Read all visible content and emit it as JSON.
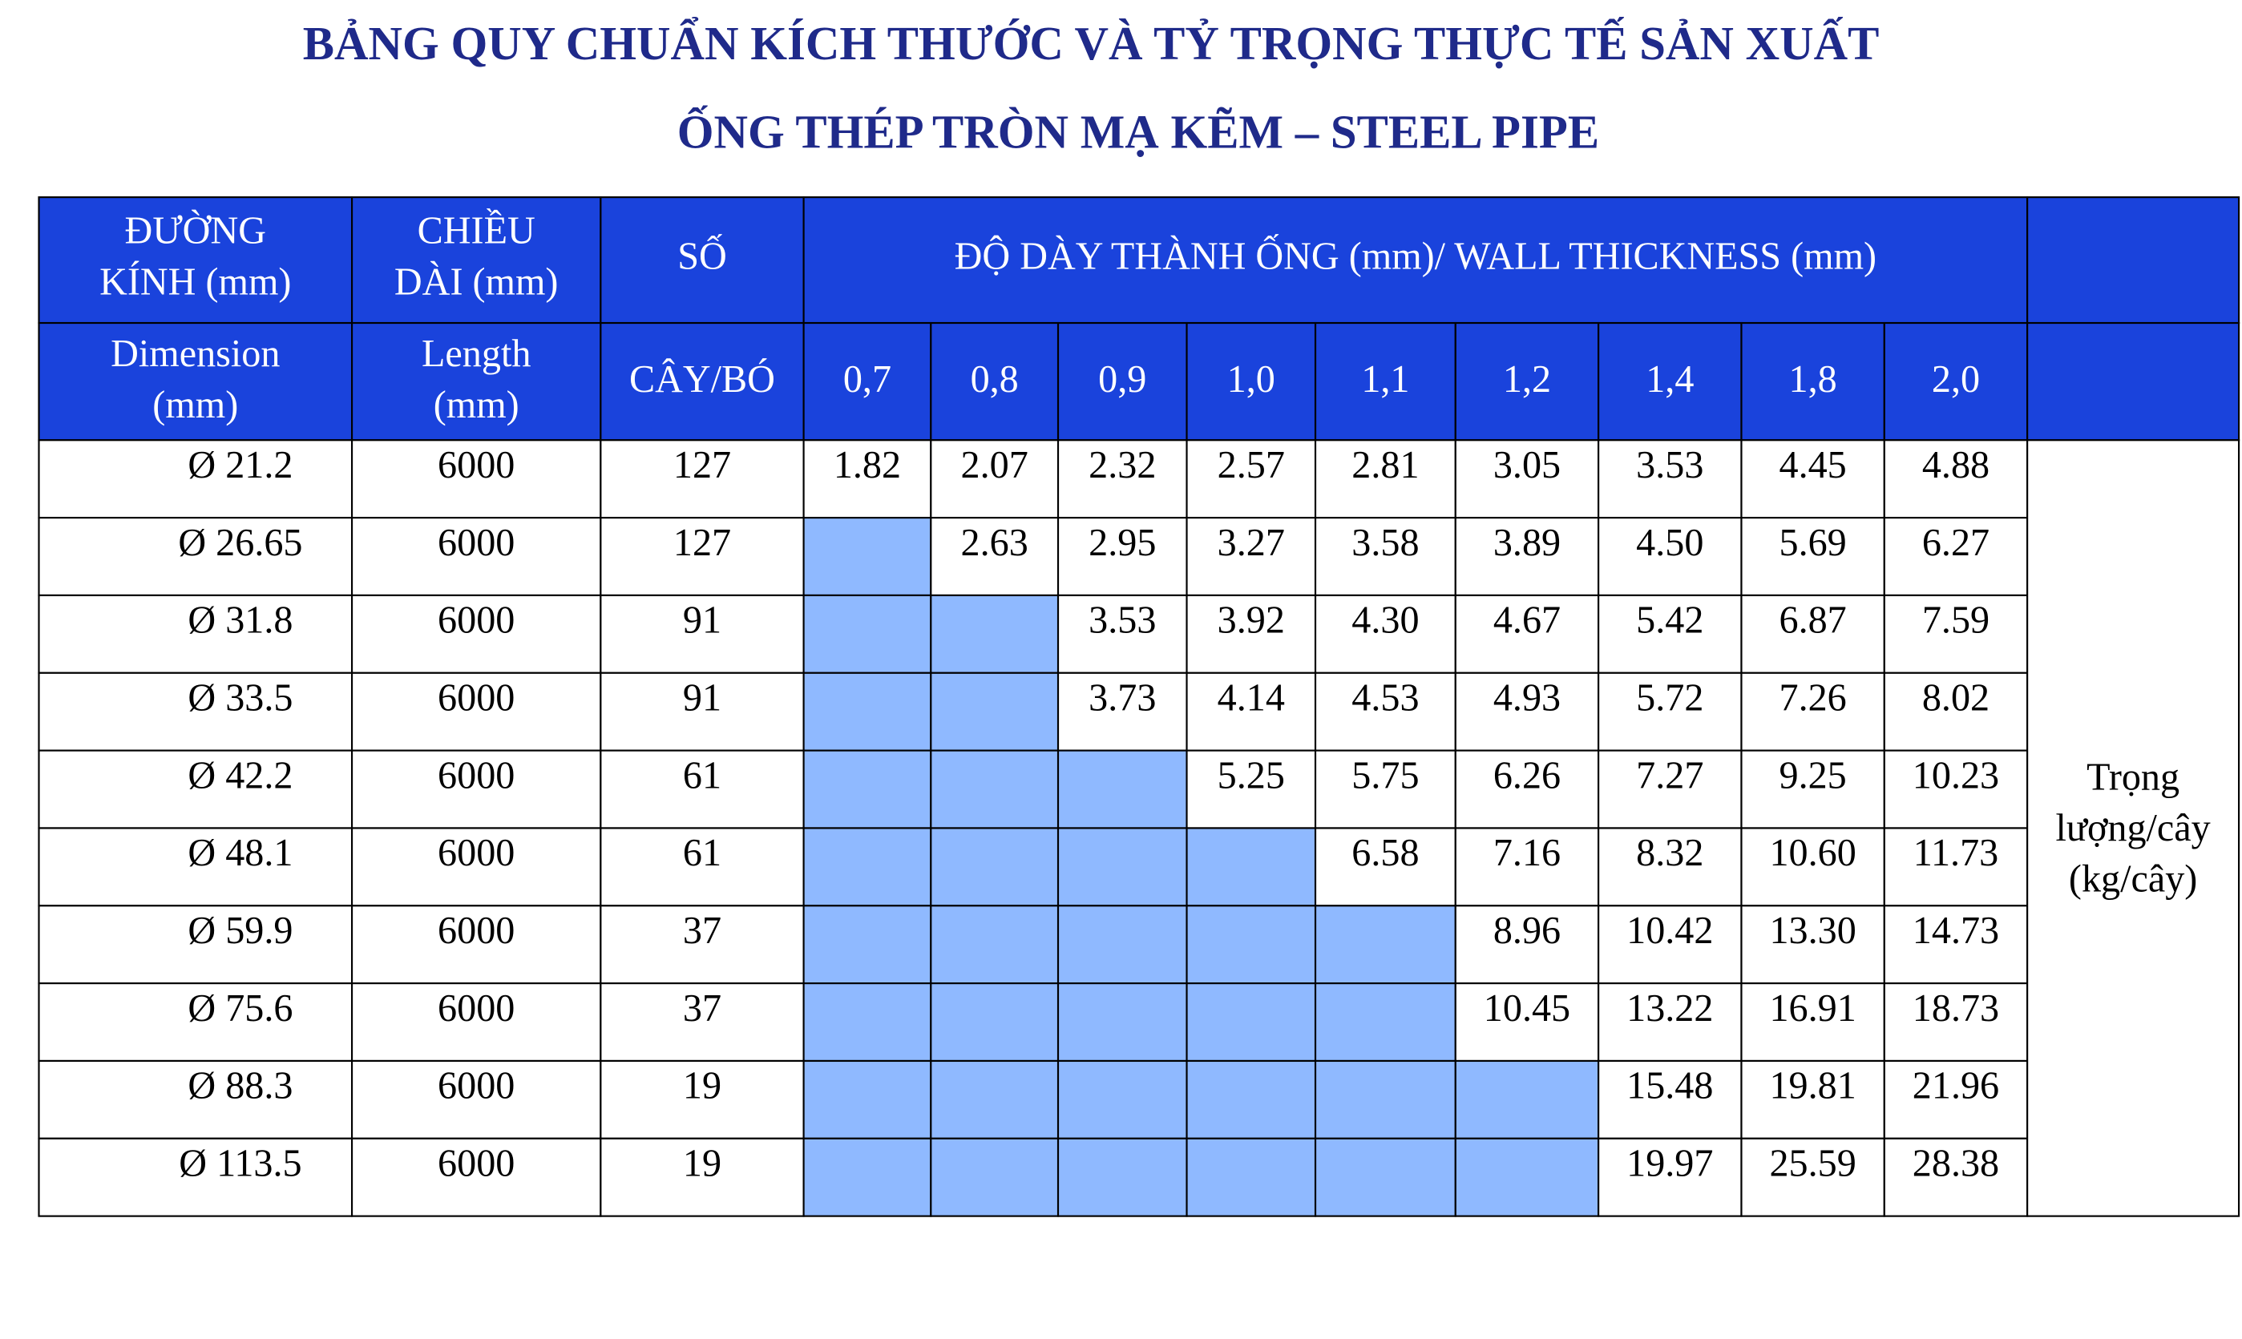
{
  "title": [
    "BẢNG QUY CHUẨN KÍCH THƯỚC VÀ TỶ TRỌNG THỰC TẾ SẢN XUẤT",
    "ỐNG THÉP TRÒN MẠ KẼM – STEEL PIPE"
  ],
  "table": {
    "header_top": [
      [
        "ĐƯỜNG",
        "KÍNH (mm)"
      ],
      [
        "CHIỀU",
        "DÀI (mm)"
      ],
      [
        "SỐ"
      ],
      [
        "ĐỘ DÀY THÀNH ỐNG (mm)/ WALL THICKNESS (mm)"
      ]
    ],
    "header_bottom": [
      [
        "Dimension",
        "(mm)"
      ],
      [
        "Length",
        "(mm)"
      ],
      [
        "CÂY/BÓ"
      ]
    ],
    "thickness": [
      "0,7",
      "0,8",
      "0,9",
      "1,0",
      "1,1",
      "1,2",
      "1,4",
      "1,8",
      "2,0"
    ],
    "rows": [
      [
        "Ø 21.2",
        "6000",
        "127",
        "1.82",
        "2.07",
        "2.32",
        "2.57",
        "2.81",
        "3.05",
        "3.53",
        "4.45",
        "4.88"
      ],
      [
        "Ø 26.65",
        "6000",
        "127",
        null,
        "2.63",
        "2.95",
        "3.27",
        "3.58",
        "3.89",
        "4.50",
        "5.69",
        "6.27"
      ],
      [
        "Ø 31.8",
        "6000",
        "91",
        null,
        null,
        "3.53",
        "3.92",
        "4.30",
        "4.67",
        "5.42",
        "6.87",
        "7.59"
      ],
      [
        "Ø 33.5",
        "6000",
        "91",
        null,
        null,
        "3.73",
        "4.14",
        "4.53",
        "4.93",
        "5.72",
        "7.26",
        "8.02"
      ],
      [
        "Ø 42.2",
        "6000",
        "61",
        null,
        null,
        null,
        "5.25",
        "5.75",
        "6.26",
        "7.27",
        "9.25",
        "10.23"
      ],
      [
        "Ø 48.1",
        "6000",
        "61",
        null,
        null,
        null,
        null,
        "6.58",
        "7.16",
        "8.32",
        "10.60",
        "11.73"
      ],
      [
        "Ø 59.9",
        "6000",
        "37",
        null,
        null,
        null,
        null,
        null,
        "8.96",
        "10.42",
        "13.30",
        "14.73"
      ],
      [
        "Ø 75.6",
        "6000",
        "37",
        null,
        null,
        null,
        null,
        null,
        "10.45",
        "13.22",
        "16.91",
        "18.73"
      ],
      [
        "Ø 88.3",
        "6000",
        "19",
        null,
        null,
        null,
        null,
        null,
        null,
        "15.48",
        "19.81",
        "21.96"
      ],
      [
        "Ø 113.5",
        "6000",
        "19",
        null,
        null,
        null,
        null,
        null,
        null,
        "19.97",
        "25.59",
        "28.38"
      ]
    ],
    "note": [
      "Trọng",
      "lượng/cây",
      "(kg/cây)"
    ]
  }
}
